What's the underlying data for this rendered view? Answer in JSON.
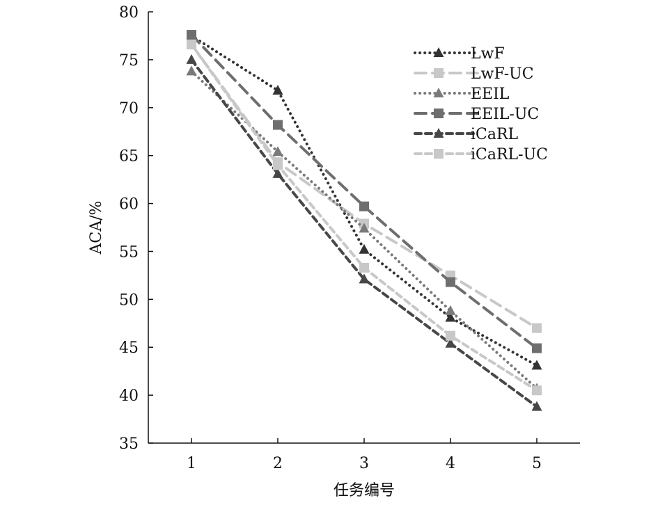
{
  "chart_data": {
    "type": "line",
    "title": "",
    "xlabel": "任务编号",
    "ylabel": "ACA/%",
    "x": [
      1,
      2,
      3,
      4,
      5
    ],
    "xticks": [
      "1",
      "2",
      "3",
      "4",
      "5"
    ],
    "ylim": [
      35,
      80
    ],
    "yticks": [
      "35",
      "40",
      "45",
      "50",
      "55",
      "60",
      "65",
      "70",
      "75",
      "80"
    ],
    "grid": false,
    "legend_position": "top-right",
    "series": [
      {
        "name": "LwF",
        "values": [
          77.5,
          71.8,
          55.2,
          48.1,
          43.1
        ],
        "color": "#333333",
        "marker": "triangle",
        "dash": "dot"
      },
      {
        "name": "LwF-UC",
        "values": [
          76.6,
          64.3,
          57.9,
          52.5,
          47.0
        ],
        "color": "#c8c8c8",
        "marker": "square",
        "dash": "long"
      },
      {
        "name": "EEIL",
        "values": [
          73.8,
          65.4,
          57.4,
          48.8,
          40.7
        ],
        "color": "#7a7a7a",
        "marker": "triangle",
        "dash": "dot"
      },
      {
        "name": "EEIL-UC",
        "values": [
          77.6,
          68.2,
          59.7,
          51.8,
          44.9
        ],
        "color": "#6e6e6e",
        "marker": "square",
        "dash": "long"
      },
      {
        "name": "iCaRL",
        "values": [
          75.0,
          63.1,
          52.1,
          45.4,
          38.8
        ],
        "color": "#474747",
        "marker": "triangle",
        "dash": "short"
      },
      {
        "name": "iCaRL-UC",
        "values": [
          76.6,
          64.0,
          53.3,
          46.2,
          40.5
        ],
        "color": "#c8c8c8",
        "marker": "square",
        "dash": "short"
      }
    ]
  }
}
